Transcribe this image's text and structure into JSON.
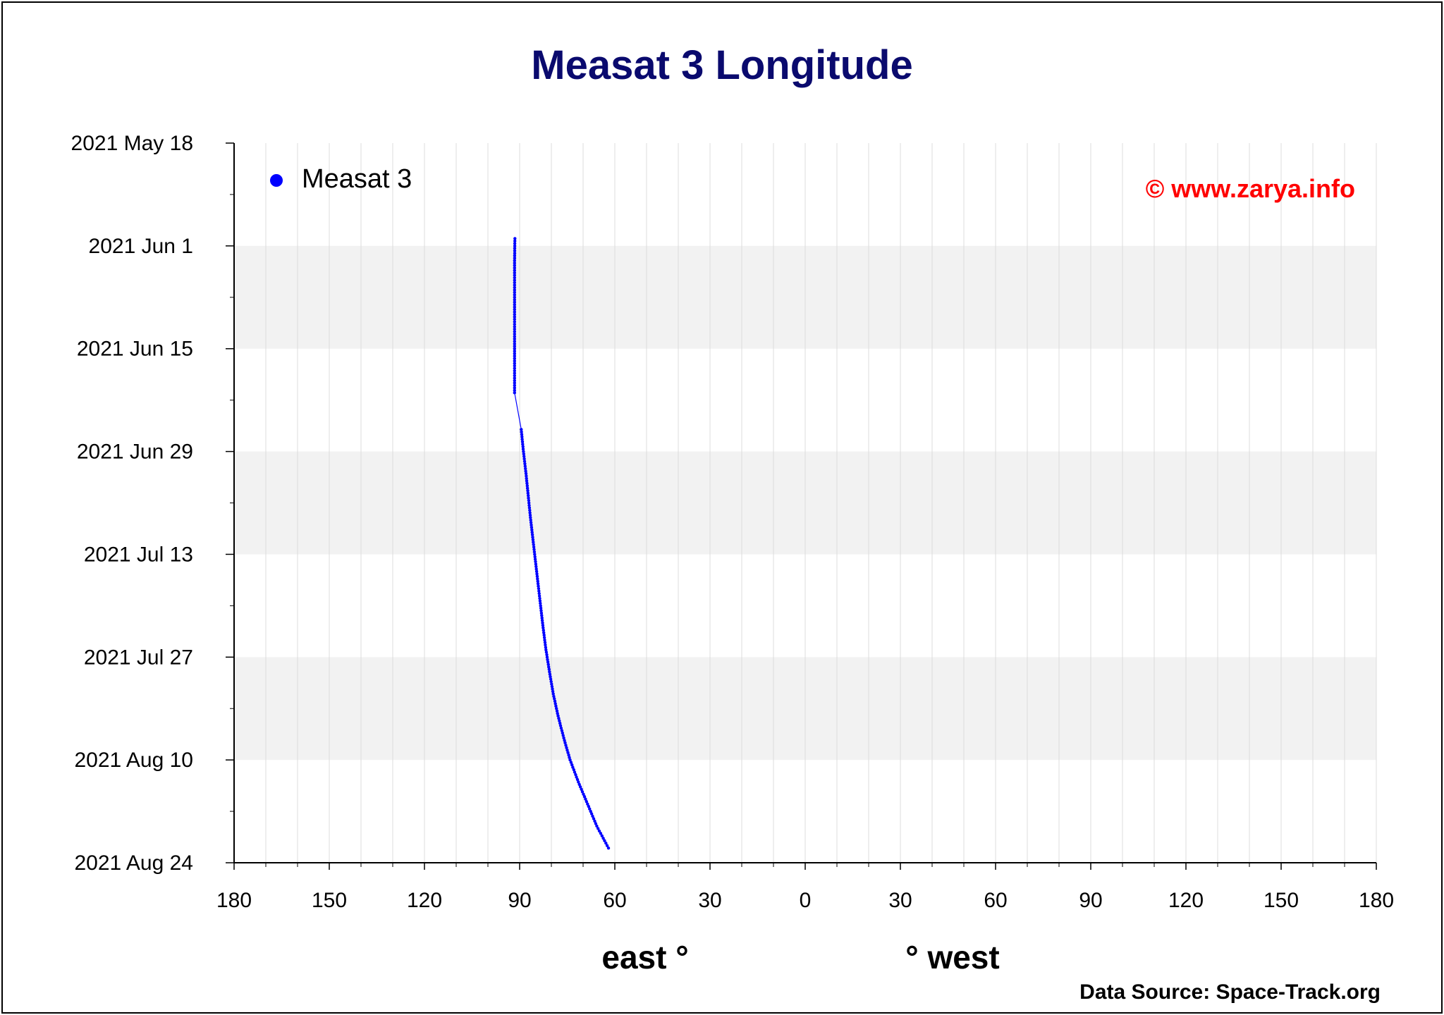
{
  "colors": {
    "title": "#0a0a6e",
    "series": "#0000ff",
    "copyright": "#ff0000",
    "band": "#f2f2f2",
    "grid": "#dcdcdc"
  },
  "chart_data": {
    "type": "scatter",
    "title": "Measat 3 Longitude",
    "x_axis": {
      "range": [
        -180,
        180
      ],
      "tick_values": [
        -180,
        -150,
        -120,
        -90,
        -60,
        -30,
        0,
        30,
        60,
        90,
        120,
        150,
        180
      ],
      "tick_labels": [
        "180",
        "150",
        "120",
        "90",
        "60",
        "30",
        "0",
        "30",
        "60",
        "90",
        "120",
        "150",
        "180"
      ],
      "label_left": "east °",
      "label_right": "° west"
    },
    "y_axis": {
      "range": [
        "2021-05-18",
        "2021-08-24"
      ],
      "inverted": true,
      "ticks": [
        {
          "date": "2021-05-18",
          "label": "2021 May 18"
        },
        {
          "date": "2021-06-01",
          "label": "2021 Jun 1"
        },
        {
          "date": "2021-06-15",
          "label": "2021 Jun 15"
        },
        {
          "date": "2021-06-29",
          "label": "2021 Jun 29"
        },
        {
          "date": "2021-07-13",
          "label": "2021 Jul 13"
        },
        {
          "date": "2021-07-27",
          "label": "2021 Jul 27"
        },
        {
          "date": "2021-08-10",
          "label": "2021 Aug 10"
        },
        {
          "date": "2021-08-24",
          "label": "2021 Aug 24"
        }
      ],
      "shaded_bands": [
        [
          "2021-06-01",
          "2021-06-15"
        ],
        [
          "2021-06-29",
          "2021-07-13"
        ],
        [
          "2021-07-27",
          "2021-08-10"
        ]
      ]
    },
    "grid": true,
    "legend": {
      "position": "top-left",
      "entries": [
        "Measat 3"
      ]
    },
    "series": [
      {
        "name": "Measat 3",
        "points": [
          {
            "date": "2021-05-31",
            "lon": -91.5
          },
          {
            "date": "2021-06-03",
            "lon": -91.6
          },
          {
            "date": "2021-06-06",
            "lon": -91.6
          },
          {
            "date": "2021-06-09",
            "lon": -91.6
          },
          {
            "date": "2021-06-12",
            "lon": -91.6
          },
          {
            "date": "2021-06-15",
            "lon": -91.6
          },
          {
            "date": "2021-06-18",
            "lon": -91.6
          },
          {
            "date": "2021-06-20",
            "lon": -91.6
          },
          {
            "date": "2021-06-21",
            "lon": -91.6
          },
          {
            "date": "2021-06-26",
            "lon": -89.5
          },
          {
            "date": "2021-06-29",
            "lon": -88.8
          },
          {
            "date": "2021-07-02",
            "lon": -88.0
          },
          {
            "date": "2021-07-05",
            "lon": -87.3
          },
          {
            "date": "2021-07-08",
            "lon": -86.6
          },
          {
            "date": "2021-07-11",
            "lon": -85.8
          },
          {
            "date": "2021-07-14",
            "lon": -85.0
          },
          {
            "date": "2021-07-17",
            "lon": -84.2
          },
          {
            "date": "2021-07-20",
            "lon": -83.4
          },
          {
            "date": "2021-07-23",
            "lon": -82.6
          },
          {
            "date": "2021-07-26",
            "lon": -81.7
          },
          {
            "date": "2021-07-29",
            "lon": -80.6
          },
          {
            "date": "2021-08-01",
            "lon": -79.4
          },
          {
            "date": "2021-08-04",
            "lon": -77.9
          },
          {
            "date": "2021-08-07",
            "lon": -76.1
          },
          {
            "date": "2021-08-10",
            "lon": -74.1
          },
          {
            "date": "2021-08-13",
            "lon": -71.5
          },
          {
            "date": "2021-08-16",
            "lon": -68.6
          },
          {
            "date": "2021-08-19",
            "lon": -65.7
          },
          {
            "date": "2021-08-22",
            "lon": -62.0
          }
        ]
      }
    ],
    "annotations": [
      "© www.zarya.info",
      "Data Source: Space-Track.org"
    ]
  }
}
